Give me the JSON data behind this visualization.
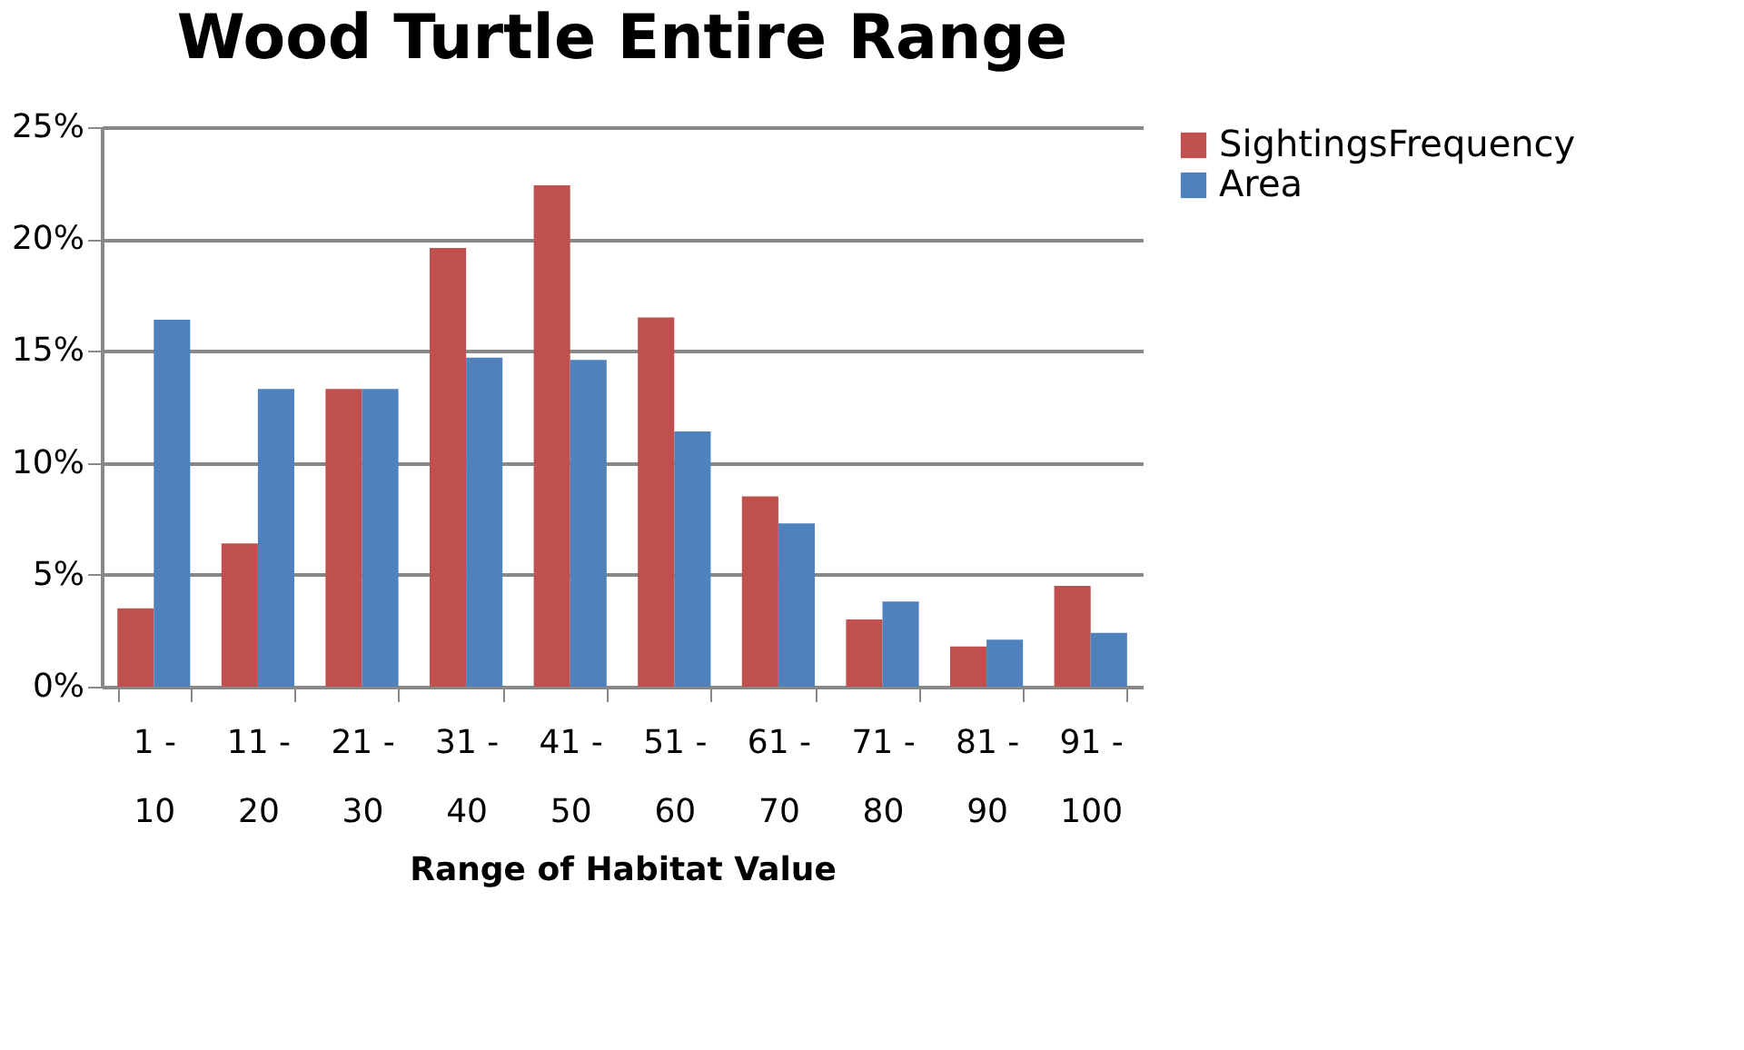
{
  "chart_data": {
    "type": "bar",
    "title": "Wood Turtle Entire Range",
    "xlabel": "Range of Habitat Value",
    "categories": [
      "1 - 10",
      "11 - 20",
      "21 - 30",
      "31 - 40",
      "41 - 50",
      "51 - 60",
      "61 - 70",
      "71 - 80",
      "81 - 90",
      "91 - 100"
    ],
    "series": [
      {
        "name": "SightingsFrequency",
        "color": "#c0504d",
        "values": [
          3.5,
          6.4,
          13.3,
          19.6,
          22.4,
          16.5,
          8.5,
          3.0,
          1.8,
          4.5
        ]
      },
      {
        "name": "Area",
        "color": "#4f81bd",
        "values": [
          16.4,
          13.3,
          13.3,
          14.7,
          14.6,
          11.4,
          7.3,
          3.8,
          2.1,
          2.4
        ]
      }
    ],
    "ylim": [
      0,
      25
    ],
    "yticks": [
      {
        "value": 0,
        "label": "0%"
      },
      {
        "value": 5,
        "label": "5%"
      },
      {
        "value": 10,
        "label": "10%"
      },
      {
        "value": 15,
        "label": "15%"
      },
      {
        "value": 20,
        "label": "20%"
      },
      {
        "value": 25,
        "label": "25%"
      }
    ],
    "grid": "y",
    "legend": "right"
  }
}
